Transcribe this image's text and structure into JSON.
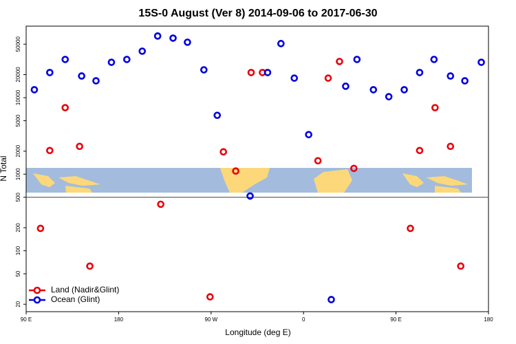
{
  "chart_data": {
    "type": "scatter",
    "title": "15S-0 August (Ver 8)   2014-09-06 to 2017-06-30",
    "x_label": "Longitude (deg E)",
    "y_label": "N Total",
    "log_y": true,
    "legend": "bottom-left",
    "xlim": [
      90,
      540
    ],
    "xticks": [
      {
        "value": 90,
        "label": "90 E"
      },
      180,
      {
        "value": 270,
        "label": "90 W"
      },
      {
        "value": 360,
        "label": "0"
      },
      {
        "value": 450,
        "label": "90 E"
      },
      {
        "value": 540,
        "label": "180"
      }
    ],
    "ylim": [
      16,
      86000
    ],
    "yticks": [
      20,
      50,
      100,
      200,
      500,
      1000,
      2000,
      5000,
      10000,
      20000,
      50000
    ],
    "reference_line": 500,
    "series": [
      {
        "name": "Land (Nadir&Glint)",
        "color": "#e8000b",
        "x": [
          104,
          113,
          128,
          142,
          152,
          221,
          269,
          282,
          294,
          309,
          320,
          374,
          384,
          395,
          409,
          464,
          473,
          488,
          503,
          513
        ],
        "values": [
          196,
          2040,
          7400,
          2310,
          63,
          405,
          25,
          1960,
          1100,
          21300,
          21300,
          1500,
          18000,
          29700,
          1190,
          196,
          2040,
          7400,
          2310,
          63
        ]
      },
      {
        "name": "Ocean (Glint)",
        "color": "#0000e0",
        "x": [
          98,
          113,
          128,
          144,
          158,
          173,
          188,
          203,
          218,
          233,
          247,
          263,
          276,
          308,
          325,
          338,
          351,
          365,
          387,
          401,
          412,
          428,
          443,
          458,
          473,
          487,
          503,
          517,
          533
        ],
        "values": [
          12700,
          21300,
          31600,
          19200,
          16600,
          29000,
          31600,
          40500,
          63900,
          60000,
          53000,
          23100,
          5880,
          519,
          21300,
          50900,
          18000,
          3290,
          23,
          14100,
          31600,
          12700,
          10300,
          12700,
          21300,
          31600,
          19200,
          16600,
          29000
        ]
      }
    ]
  }
}
